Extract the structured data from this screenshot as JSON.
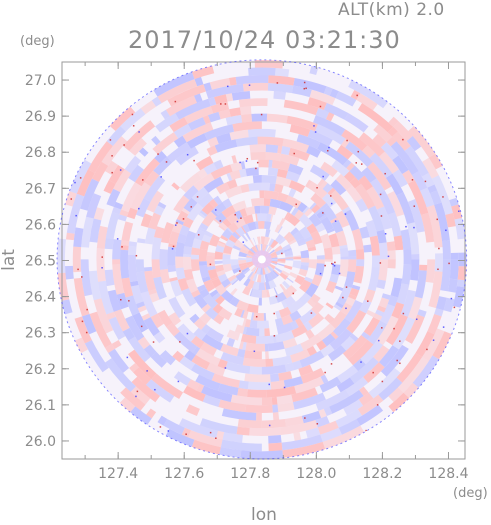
{
  "header": {
    "altitude_label": "ALT(km) 2.0",
    "timestamp": "2017/10/24 03:21:30"
  },
  "chart_data": {
    "type": "heatmap",
    "title": "2017/10/24 03:21:30",
    "subtitle": "ALT(km) 2.0",
    "xlabel": "lon",
    "ylabel": "lat",
    "x_unit": "(deg)",
    "y_unit": "(deg)",
    "xlim": [
      127.23,
      128.45
    ],
    "ylim": [
      25.95,
      27.05
    ],
    "x_ticks": [
      127.4,
      127.6,
      127.8,
      128.0,
      128.2,
      128.4
    ],
    "x_tick_labels": [
      "127.4",
      "127.6",
      "127.8",
      "128.0",
      "128.2",
      "128.4"
    ],
    "y_ticks": [
      26.0,
      26.1,
      26.2,
      26.3,
      26.4,
      26.5,
      26.6,
      26.7,
      26.8,
      26.9,
      27.0
    ],
    "y_tick_labels": [
      "26.0",
      "26.1",
      "26.2",
      "26.3",
      "26.4",
      "26.5",
      "26.6",
      "26.7",
      "26.8",
      "26.9",
      "27.0"
    ],
    "radar_center": {
      "lon": 127.835,
      "lat": 26.503
    },
    "radar_extent_deg": {
      "lon": 0.62,
      "lat": 0.553
    },
    "colors": {
      "negative": "#b8bcff",
      "positive": "#ffb8b8",
      "edge": "#3a3aff",
      "speckle": "#cc2222"
    },
    "grid": false,
    "legend": "none"
  }
}
